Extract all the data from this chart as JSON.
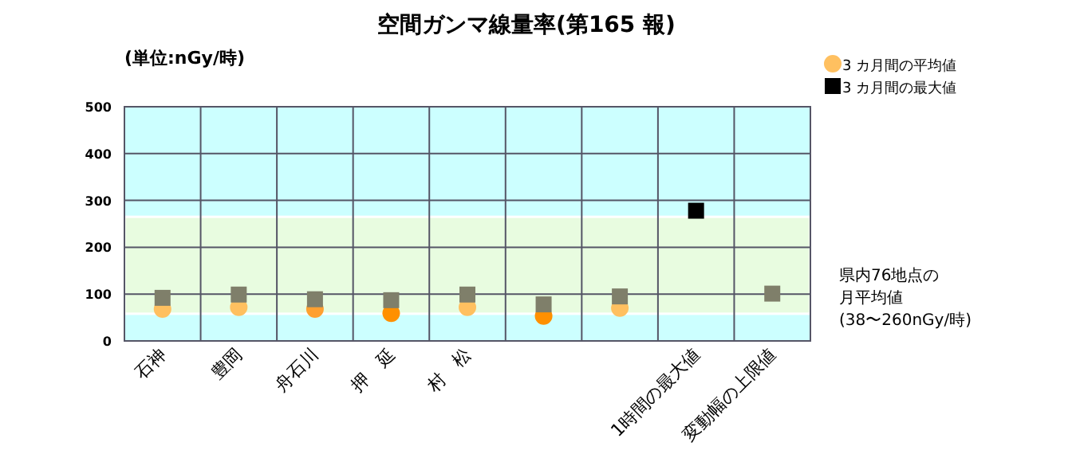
{
  "chart_data": {
    "type": "scatter",
    "title": "空間ガンマ線量率(第165 報)",
    "categories": [
      "石神",
      "豊岡",
      "舟石川",
      "押　延",
      "村　松",
      null,
      null,
      "1時間の最大値",
      "変動幅の上限値"
    ],
    "series": [
      {
        "name": "3 カ月間の平均値",
        "color": "#ffc060",
        "colors": [
          "#ffc060",
          "#ffc060",
          "#ffa030",
          "#ff9000",
          "#ffc060",
          "#ff9000",
          "#ffc060",
          null,
          null
        ],
        "marker": "circle",
        "values": [
          68,
          72,
          68,
          59,
          72,
          53,
          70,
          null,
          null
        ]
      },
      {
        "name": "3 カ月間の最大値",
        "color": "#000000",
        "colors": [
          "#7f7f6a",
          "#7f7f6a",
          "#7f7f6a",
          "#7f7f6a",
          "#7f7f6a",
          "#7f7f6a",
          "#7f7f6a",
          "#000000",
          "#7f7f6a"
        ],
        "marker": "square",
        "values": [
          92,
          99,
          89,
          87,
          99,
          78,
          95,
          278,
          101
        ]
      }
    ],
    "ylim": [
      0,
      500
    ],
    "yticks": [
      0,
      100,
      200,
      300,
      400,
      500
    ],
    "grid": true,
    "legend": "top right",
    "bands": [
      {
        "axis": "y",
        "from": 58,
        "to": 265,
        "color": "#e8fce0"
      }
    ],
    "annotations": [
      "(単位:nGy/時)",
      "県内76地点の",
      "月平均値",
      "(38〜260nGy/時)"
    ]
  }
}
